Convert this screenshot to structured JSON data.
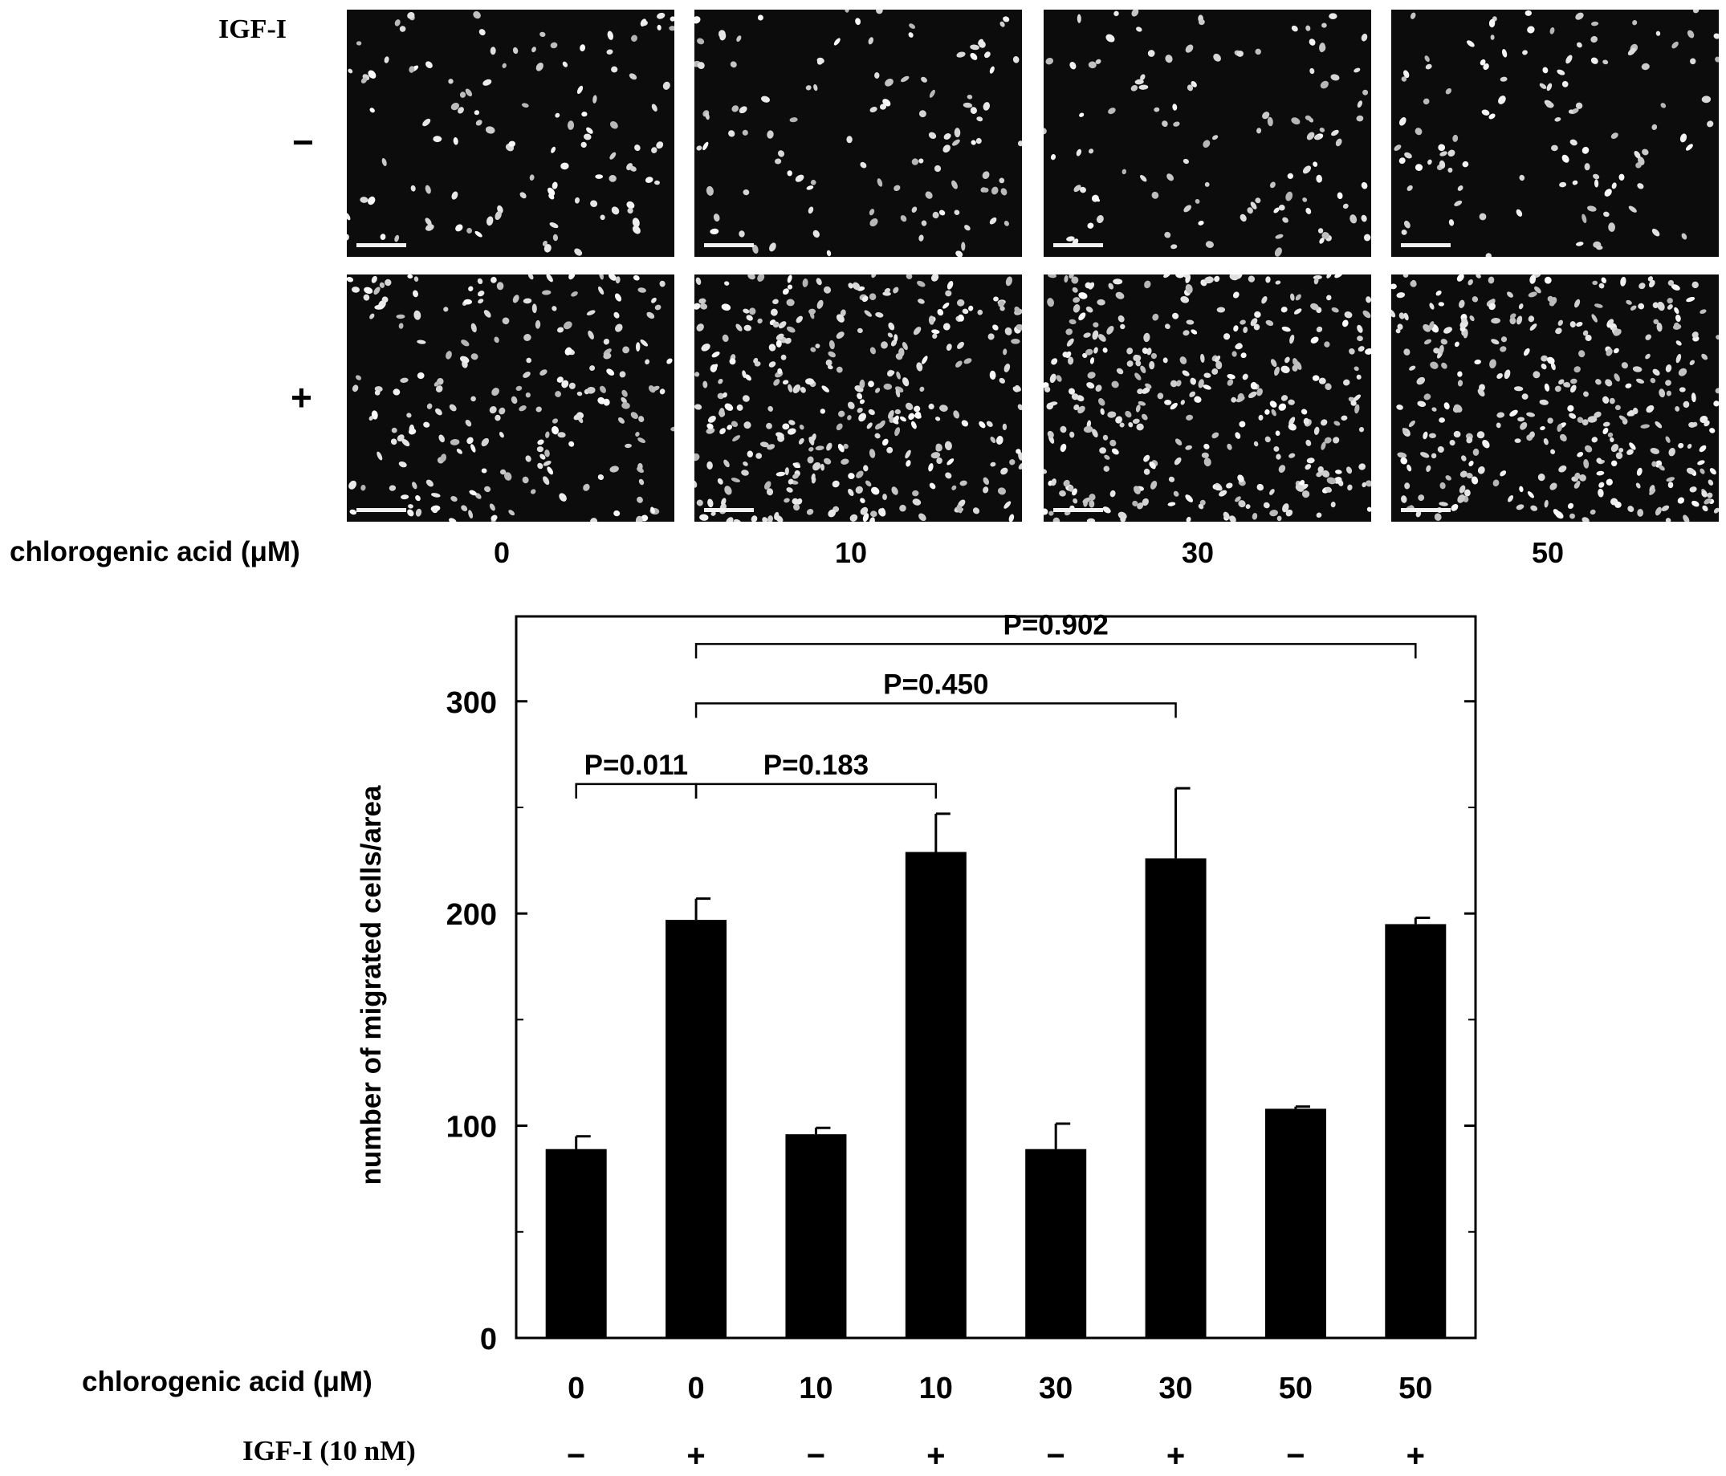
{
  "micrographs": {
    "igf_label": "IGF-I",
    "rows": [
      {
        "label": "−"
      },
      {
        "label": "+"
      }
    ],
    "conc_axis_label": "chlorogenic acid (μM)",
    "columns": [
      "0",
      "10",
      "30",
      "50"
    ]
  },
  "chart_data": {
    "type": "bar",
    "ylabel": "number of migrated cells/area",
    "ylim": [
      0,
      340
    ],
    "yticks": [
      0,
      100,
      200,
      300
    ],
    "grid": false,
    "bar_color": "#000000",
    "rows_label_conc": "chlorogenic acid (μM)",
    "rows_label_igf": "IGF-I (10 nM)",
    "categories_conc": [
      "0",
      "0",
      "10",
      "10",
      "30",
      "30",
      "50",
      "50"
    ],
    "categories_igf": [
      "−",
      "+",
      "−",
      "+",
      "−",
      "+",
      "−",
      "+"
    ],
    "values": [
      89,
      197,
      96,
      229,
      89,
      226,
      108,
      195
    ],
    "errors": [
      6,
      10,
      3,
      18,
      12,
      33,
      1,
      3
    ],
    "comparisons": [
      {
        "from": 0,
        "to": 1,
        "label": "P=0.011",
        "y": 261
      },
      {
        "from": 1,
        "to": 3,
        "label": "P=0.183",
        "y": 261
      },
      {
        "from": 1,
        "to": 5,
        "label": "P=0.450",
        "y": 299
      },
      {
        "from": 1,
        "to": 7,
        "label": "P=0.902",
        "y": 327
      }
    ]
  }
}
